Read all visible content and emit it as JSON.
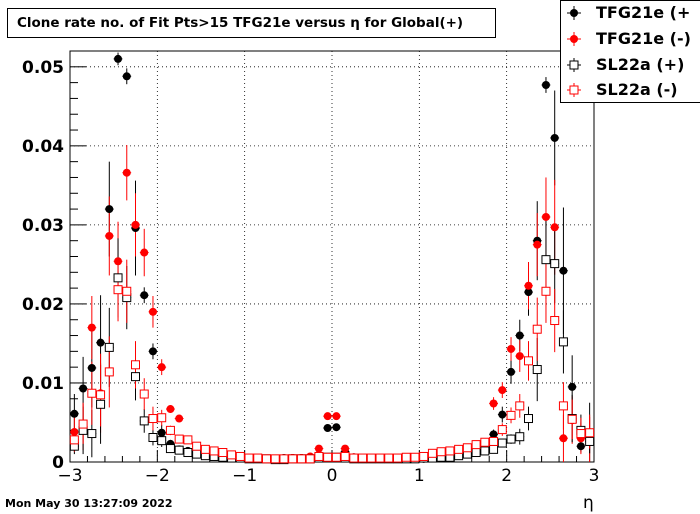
{
  "chart_data": {
    "type": "scatter",
    "title": "Clone rate no. of Fit Pts>15 TFG21e versus η for Global(+)",
    "xlabel": "η",
    "ylabel": "",
    "xlim": [
      -3,
      3
    ],
    "ylim": [
      0,
      0.052
    ],
    "xticks": [
      -3,
      -2,
      -1,
      0,
      1,
      2,
      3
    ],
    "xtick_labels": [
      "−3",
      "−2",
      "−1",
      "0",
      "1",
      "2",
      "3"
    ],
    "yticks": [
      0,
      0.01,
      0.02,
      0.03,
      0.04,
      0.05
    ],
    "ytick_labels": [
      "0",
      "0.01",
      "0.02",
      "0.03",
      "0.04",
      "0.05"
    ],
    "grid": true,
    "legend_position": "top-right",
    "series": [
      {
        "name": "TFG21e (+",
        "color": "#000000",
        "marker": "filled-circle",
        "x": [
          -2.95,
          -2.85,
          -2.75,
          -2.65,
          -2.55,
          -2.45,
          -2.35,
          -2.25,
          -2.15,
          -2.05,
          -1.95,
          -1.85,
          -1.75,
          -1.65,
          -1.55,
          -1.45,
          -1.35,
          -1.25,
          -1.15,
          -1.05,
          -0.95,
          -0.85,
          -0.75,
          -0.65,
          -0.55,
          -0.45,
          -0.35,
          -0.25,
          -0.15,
          -0.05,
          0.05,
          0.15,
          0.25,
          0.35,
          0.45,
          0.55,
          0.65,
          0.75,
          0.85,
          0.95,
          1.05,
          1.15,
          1.25,
          1.35,
          1.45,
          1.55,
          1.65,
          1.75,
          1.85,
          1.95,
          2.05,
          2.15,
          2.25,
          2.35,
          2.45,
          2.55,
          2.65,
          2.75,
          2.85,
          2.95
        ],
        "y": [
          0.0061,
          0.0093,
          0.0119,
          0.0151,
          0.032,
          0.051,
          0.0488,
          0.0296,
          0.0211,
          0.014,
          0.0037,
          0.0023,
          0.0016,
          0.0014,
          0.0012,
          0.001,
          0.0008,
          0.0007,
          0.0006,
          0.0006,
          0.0005,
          0.0004,
          0.0004,
          0.0004,
          0.0005,
          0.0005,
          0.0005,
          0.0006,
          0.0009,
          0.0043,
          0.0044,
          0.0013,
          0.0006,
          0.0005,
          0.0004,
          0.0004,
          0.0004,
          0.0004,
          0.0004,
          0.0004,
          0.0004,
          0.0005,
          0.0006,
          0.0007,
          0.0009,
          0.0011,
          0.0014,
          0.0018,
          0.0035,
          0.006,
          0.0114,
          0.016,
          0.0215,
          0.028,
          0.0477,
          0.041,
          0.0242,
          0.0095,
          0.002,
          0.0035
        ],
        "yerr": [
          0.0025,
          0.004,
          0.005,
          0.006,
          0.006,
          0.0008,
          0.001,
          0.006,
          0.001,
          0.001,
          0.001,
          0.0005,
          0.0004,
          0.0003,
          0.0003,
          0.0002,
          0.0002,
          0.0002,
          0.0002,
          0.0002,
          0.0001,
          0.0001,
          0.0001,
          0.0001,
          0.0001,
          0.0001,
          0.0001,
          0.0002,
          0.0003,
          0.0004,
          0.0004,
          0.0003,
          0.0002,
          0.0001,
          0.0001,
          0.0001,
          0.0001,
          0.0001,
          0.0001,
          0.0001,
          0.0001,
          0.0001,
          0.0002,
          0.0002,
          0.0002,
          0.0003,
          0.0003,
          0.0004,
          0.0006,
          0.001,
          0.0015,
          0.002,
          0.003,
          0.005,
          0.001,
          0.006,
          0.008,
          0.004,
          0.0008,
          0.004
        ]
      },
      {
        "name": "TFG21e (-)",
        "color": "#ff0000",
        "marker": "filled-circle",
        "x": [
          -2.95,
          -2.85,
          -2.75,
          -2.65,
          -2.55,
          -2.45,
          -2.35,
          -2.25,
          -2.15,
          -2.05,
          -1.95,
          -1.85,
          -1.75,
          -1.65,
          -1.55,
          -1.45,
          -1.35,
          -1.25,
          -1.15,
          -1.05,
          -0.95,
          -0.85,
          -0.75,
          -0.65,
          -0.55,
          -0.45,
          -0.35,
          -0.25,
          -0.15,
          -0.05,
          0.05,
          0.15,
          0.25,
          0.35,
          0.45,
          0.55,
          0.65,
          0.75,
          0.85,
          0.95,
          1.05,
          1.15,
          1.25,
          1.35,
          1.45,
          1.55,
          1.65,
          1.75,
          1.85,
          1.95,
          2.05,
          2.15,
          2.25,
          2.35,
          2.45,
          2.55,
          2.65,
          2.75,
          2.85,
          2.95
        ],
        "y": [
          0.0038,
          0.0045,
          0.017,
          0.0087,
          0.0286,
          0.0254,
          0.0366,
          0.03,
          0.0265,
          0.019,
          0.012,
          0.0067,
          0.0055,
          0.0028,
          0.002,
          0.0015,
          0.0013,
          0.001,
          0.0008,
          0.0006,
          0.0005,
          0.0004,
          0.0004,
          0.0003,
          0.0004,
          0.0005,
          0.0005,
          0.0007,
          0.0017,
          0.0058,
          0.0058,
          0.0017,
          0.0006,
          0.0004,
          0.0004,
          0.0004,
          0.0004,
          0.0004,
          0.0004,
          0.0004,
          0.0005,
          0.0006,
          0.0007,
          0.0008,
          0.001,
          0.0013,
          0.0017,
          0.0022,
          0.0074,
          0.0091,
          0.0143,
          0.0134,
          0.0223,
          0.0275,
          0.031,
          0.0297,
          0.003,
          0.0053,
          0.003,
          0.003
        ],
        "yerr": [
          0.002,
          0.003,
          0.004,
          0.005,
          0.005,
          0.005,
          0.0035,
          0.004,
          0.003,
          0.002,
          0.001,
          0.0005,
          0.0004,
          0.0003,
          0.0003,
          0.0002,
          0.0002,
          0.0002,
          0.0002,
          0.0001,
          0.0001,
          0.0001,
          0.0001,
          0.0001,
          0.0001,
          0.0001,
          0.0001,
          0.0002,
          0.0003,
          0.0004,
          0.0004,
          0.0003,
          0.0002,
          0.0001,
          0.0001,
          0.0001,
          0.0001,
          0.0001,
          0.0001,
          0.0001,
          0.0001,
          0.0001,
          0.0002,
          0.0002,
          0.0002,
          0.0003,
          0.0003,
          0.0004,
          0.0008,
          0.001,
          0.0015,
          0.002,
          0.003,
          0.004,
          0.005,
          0.006,
          0.003,
          0.003,
          0.002,
          0.003
        ]
      },
      {
        "name": "SL22a (+)",
        "color": "#000000",
        "marker": "open-square",
        "x": [
          -2.95,
          -2.85,
          -2.75,
          -2.65,
          -2.55,
          -2.45,
          -2.35,
          -2.25,
          -2.15,
          -2.05,
          -1.95,
          -1.85,
          -1.75,
          -1.65,
          -1.55,
          -1.45,
          -1.35,
          -1.25,
          -1.15,
          -1.05,
          -0.95,
          -0.85,
          -0.75,
          -0.65,
          -0.55,
          -0.45,
          -0.35,
          -0.25,
          -0.15,
          -0.05,
          0.05,
          0.15,
          0.25,
          0.35,
          0.45,
          0.55,
          0.65,
          0.75,
          0.85,
          0.95,
          1.05,
          1.15,
          1.25,
          1.35,
          1.45,
          1.55,
          1.65,
          1.75,
          1.85,
          1.95,
          2.05,
          2.15,
          2.25,
          2.35,
          2.45,
          2.55,
          2.65,
          2.75,
          2.85,
          2.95
        ],
        "y": [
          0.002,
          0.004,
          0.0036,
          0.0073,
          0.0145,
          0.0233,
          0.0208,
          0.0108,
          0.0052,
          0.0031,
          0.0027,
          0.0017,
          0.0015,
          0.0012,
          0.001,
          0.0008,
          0.0007,
          0.0006,
          0.0005,
          0.0005,
          0.0004,
          0.0004,
          0.0004,
          0.0003,
          0.0003,
          0.0004,
          0.0004,
          0.0004,
          0.0005,
          0.0006,
          0.0006,
          0.0005,
          0.0004,
          0.0004,
          0.0004,
          0.0004,
          0.0004,
          0.0004,
          0.0004,
          0.0004,
          0.0005,
          0.0005,
          0.0006,
          0.0006,
          0.0008,
          0.001,
          0.0012,
          0.0014,
          0.0016,
          0.0024,
          0.0029,
          0.0032,
          0.0055,
          0.0117,
          0.0256,
          0.0251,
          0.0152,
          0.0055,
          0.004,
          0.0026
        ],
        "yerr": [
          0.001,
          0.003,
          0.003,
          0.005,
          0.005,
          0.005,
          0.004,
          0.003,
          0.0015,
          0.001,
          0.0008,
          0.0004,
          0.0003,
          0.0003,
          0.0002,
          0.0002,
          0.0002,
          0.0001,
          0.0001,
          0.0001,
          0.0001,
          0.0001,
          0.0001,
          0.0001,
          0.0001,
          0.0001,
          0.0001,
          0.0001,
          0.0001,
          0.0002,
          0.0002,
          0.0001,
          0.0001,
          0.0001,
          0.0001,
          0.0001,
          0.0001,
          0.0001,
          0.0001,
          0.0001,
          0.0001,
          0.0001,
          0.0001,
          0.0002,
          0.0002,
          0.0002,
          0.0003,
          0.0003,
          0.0004,
          0.0005,
          0.0006,
          0.001,
          0.0015,
          0.004,
          0.005,
          0.005,
          0.004,
          0.003,
          0.002,
          0.0015
        ]
      },
      {
        "name": "SL22a (-)",
        "color": "#ff0000",
        "marker": "open-square",
        "x": [
          -2.95,
          -2.85,
          -2.75,
          -2.65,
          -2.55,
          -2.45,
          -2.35,
          -2.25,
          -2.15,
          -2.05,
          -1.95,
          -1.85,
          -1.75,
          -1.65,
          -1.55,
          -1.45,
          -1.35,
          -1.25,
          -1.15,
          -1.05,
          -0.95,
          -0.85,
          -0.75,
          -0.65,
          -0.55,
          -0.45,
          -0.35,
          -0.25,
          -0.15,
          -0.05,
          0.05,
          0.15,
          0.25,
          0.35,
          0.45,
          0.55,
          0.65,
          0.75,
          0.85,
          0.95,
          1.05,
          1.15,
          1.25,
          1.35,
          1.45,
          1.55,
          1.65,
          1.75,
          1.85,
          1.95,
          2.05,
          2.15,
          2.25,
          2.35,
          2.45,
          2.55,
          2.65,
          2.75,
          2.85,
          2.95
        ],
        "y": [
          0.0028,
          0.0048,
          0.0087,
          0.0085,
          0.0114,
          0.0218,
          0.0216,
          0.0123,
          0.0086,
          0.0055,
          0.0056,
          0.004,
          0.0029,
          0.0028,
          0.002,
          0.0016,
          0.0014,
          0.0012,
          0.0009,
          0.0007,
          0.0005,
          0.0005,
          0.0004,
          0.0004,
          0.0004,
          0.0004,
          0.0004,
          0.0004,
          0.0007,
          0.0006,
          0.0006,
          0.0007,
          0.0005,
          0.0005,
          0.0005,
          0.0005,
          0.0005,
          0.0005,
          0.0006,
          0.0006,
          0.0007,
          0.0011,
          0.0013,
          0.0014,
          0.0016,
          0.0018,
          0.0022,
          0.0025,
          0.0026,
          0.0041,
          0.0059,
          0.0071,
          0.0128,
          0.0168,
          0.0216,
          0.0179,
          0.0071,
          0.0054,
          0.0036,
          0.0037
        ],
        "yerr": [
          0.0015,
          0.0025,
          0.004,
          0.004,
          0.0045,
          0.004,
          0.004,
          0.003,
          0.002,
          0.0015,
          0.001,
          0.0006,
          0.0005,
          0.0004,
          0.0003,
          0.0003,
          0.0002,
          0.0002,
          0.0002,
          0.0001,
          0.0001,
          0.0001,
          0.0001,
          0.0001,
          0.0001,
          0.0001,
          0.0001,
          0.0001,
          0.0002,
          0.0002,
          0.0002,
          0.0002,
          0.0001,
          0.0001,
          0.0001,
          0.0001,
          0.0001,
          0.0001,
          0.0001,
          0.0001,
          0.0001,
          0.0002,
          0.0002,
          0.0002,
          0.0003,
          0.0003,
          0.0004,
          0.0004,
          0.0005,
          0.0008,
          0.001,
          0.0015,
          0.0025,
          0.004,
          0.004,
          0.004,
          0.003,
          0.0025,
          0.002,
          0.002
        ]
      }
    ]
  },
  "footer": {
    "timestamp": "Mon May 30 13:27:09 2022"
  }
}
